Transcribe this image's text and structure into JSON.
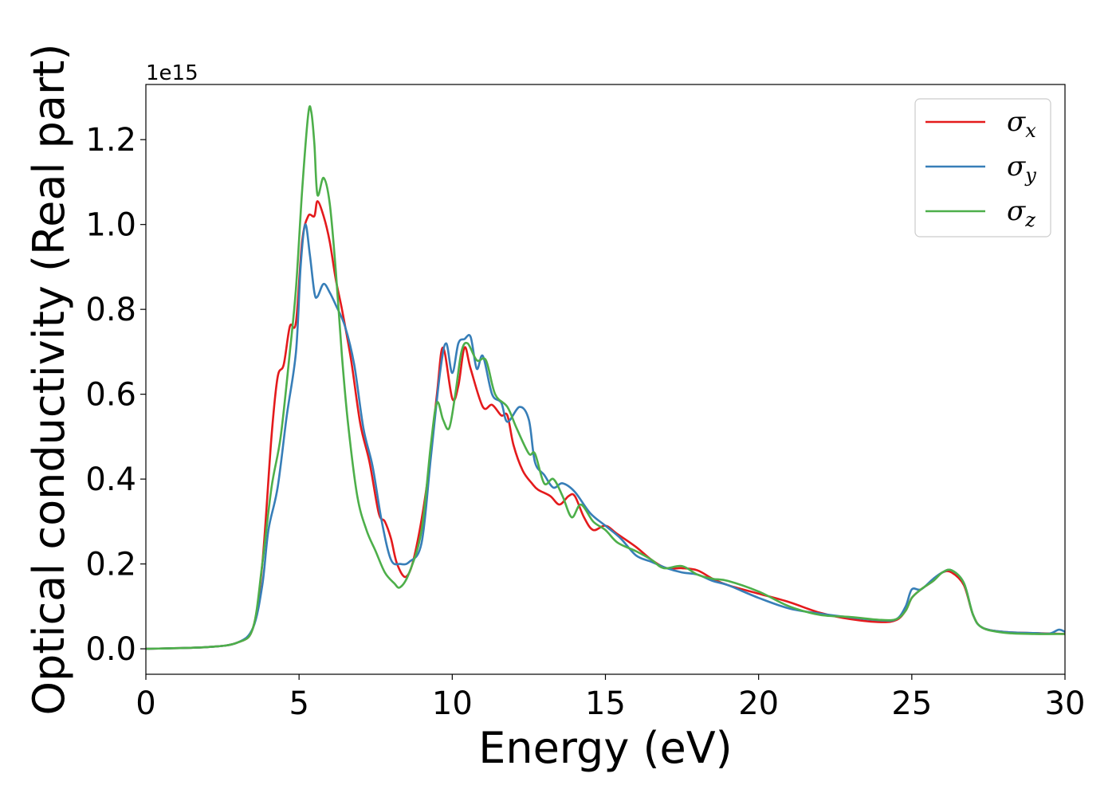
{
  "chart_data": {
    "type": "line",
    "xlabel": "Energy (eV)",
    "ylabel": "Optical conductivity (Real part)",
    "offset_text": "1e15",
    "xlim": [
      0,
      30
    ],
    "ylim": [
      -0.06,
      1.33
    ],
    "xticks": [
      0,
      5,
      10,
      15,
      20,
      25,
      30
    ],
    "xtick_labels": [
      "0",
      "5",
      "10",
      "15",
      "20",
      "25",
      "30"
    ],
    "yticks": [
      0.0,
      0.2,
      0.4,
      0.6,
      0.8,
      1.0,
      1.2
    ],
    "ytick_labels": [
      "0.0",
      "0.2",
      "0.4",
      "0.6",
      "0.8",
      "1.0",
      "1.2"
    ],
    "grid": false,
    "legend": {
      "position": "top-right"
    },
    "series": [
      {
        "name": "σx",
        "base": "σ",
        "sub": "x",
        "color": "#e41a1c",
        "points": [
          [
            0,
            0
          ],
          [
            2,
            0.004
          ],
          [
            3,
            0.015
          ],
          [
            3.5,
            0.05
          ],
          [
            3.8,
            0.2
          ],
          [
            4.1,
            0.5
          ],
          [
            4.3,
            0.64
          ],
          [
            4.5,
            0.67
          ],
          [
            4.7,
            0.76
          ],
          [
            4.9,
            0.77
          ],
          [
            5.1,
            0.96
          ],
          [
            5.3,
            1.02
          ],
          [
            5.5,
            1.02
          ],
          [
            5.6,
            1.055
          ],
          [
            5.8,
            1.02
          ],
          [
            6.0,
            0.96
          ],
          [
            6.2,
            0.87
          ],
          [
            6.4,
            0.8
          ],
          [
            6.7,
            0.68
          ],
          [
            7.0,
            0.53
          ],
          [
            7.3,
            0.44
          ],
          [
            7.6,
            0.32
          ],
          [
            7.8,
            0.3
          ],
          [
            8.0,
            0.26
          ],
          [
            8.2,
            0.2
          ],
          [
            8.5,
            0.17
          ],
          [
            8.8,
            0.23
          ],
          [
            9.2,
            0.4
          ],
          [
            9.5,
            0.6
          ],
          [
            9.7,
            0.71
          ],
          [
            10.0,
            0.59
          ],
          [
            10.2,
            0.62
          ],
          [
            10.4,
            0.71
          ],
          [
            10.6,
            0.66
          ],
          [
            11.0,
            0.57
          ],
          [
            11.3,
            0.575
          ],
          [
            11.6,
            0.55
          ],
          [
            11.8,
            0.55
          ],
          [
            12.0,
            0.48
          ],
          [
            12.3,
            0.42
          ],
          [
            12.6,
            0.39
          ],
          [
            12.8,
            0.375
          ],
          [
            13.2,
            0.36
          ],
          [
            13.5,
            0.34
          ],
          [
            13.8,
            0.36
          ],
          [
            14.0,
            0.36
          ],
          [
            14.3,
            0.31
          ],
          [
            14.6,
            0.28
          ],
          [
            15.0,
            0.29
          ],
          [
            15.4,
            0.27
          ],
          [
            16.0,
            0.24
          ],
          [
            16.5,
            0.21
          ],
          [
            17.0,
            0.19
          ],
          [
            17.5,
            0.19
          ],
          [
            18.0,
            0.185
          ],
          [
            18.5,
            0.165
          ],
          [
            19.0,
            0.15
          ],
          [
            20.0,
            0.13
          ],
          [
            21.0,
            0.11
          ],
          [
            22.0,
            0.085
          ],
          [
            23.0,
            0.07
          ],
          [
            24.0,
            0.063
          ],
          [
            24.5,
            0.068
          ],
          [
            24.8,
            0.09
          ],
          [
            25.0,
            0.12
          ],
          [
            25.3,
            0.14
          ],
          [
            25.7,
            0.16
          ],
          [
            26.0,
            0.18
          ],
          [
            26.3,
            0.18
          ],
          [
            26.7,
            0.15
          ],
          [
            27.0,
            0.08
          ],
          [
            27.3,
            0.05
          ],
          [
            28.0,
            0.04
          ],
          [
            29.0,
            0.037
          ],
          [
            30.0,
            0.035
          ]
        ]
      },
      {
        "name": "σy",
        "base": "σ",
        "sub": "y",
        "color": "#377eb8",
        "points": [
          [
            0,
            0
          ],
          [
            2,
            0.004
          ],
          [
            3,
            0.015
          ],
          [
            3.5,
            0.05
          ],
          [
            3.8,
            0.15
          ],
          [
            4.0,
            0.28
          ],
          [
            4.3,
            0.38
          ],
          [
            4.6,
            0.55
          ],
          [
            4.9,
            0.7
          ],
          [
            5.05,
            0.9
          ],
          [
            5.2,
            1.0
          ],
          [
            5.35,
            0.93
          ],
          [
            5.5,
            0.84
          ],
          [
            5.6,
            0.83
          ],
          [
            5.8,
            0.86
          ],
          [
            6.0,
            0.84
          ],
          [
            6.2,
            0.81
          ],
          [
            6.5,
            0.76
          ],
          [
            6.8,
            0.67
          ],
          [
            7.1,
            0.52
          ],
          [
            7.4,
            0.43
          ],
          [
            7.7,
            0.3
          ],
          [
            8.0,
            0.21
          ],
          [
            8.3,
            0.2
          ],
          [
            8.6,
            0.205
          ],
          [
            9.0,
            0.25
          ],
          [
            9.3,
            0.45
          ],
          [
            9.6,
            0.65
          ],
          [
            9.8,
            0.72
          ],
          [
            10.0,
            0.65
          ],
          [
            10.2,
            0.72
          ],
          [
            10.4,
            0.73
          ],
          [
            10.6,
            0.735
          ],
          [
            10.8,
            0.66
          ],
          [
            11.0,
            0.69
          ],
          [
            11.3,
            0.6
          ],
          [
            11.6,
            0.58
          ],
          [
            11.8,
            0.535
          ],
          [
            12.2,
            0.57
          ],
          [
            12.5,
            0.54
          ],
          [
            12.7,
            0.44
          ],
          [
            13.0,
            0.41
          ],
          [
            13.3,
            0.38
          ],
          [
            13.6,
            0.39
          ],
          [
            14.0,
            0.37
          ],
          [
            14.5,
            0.32
          ],
          [
            15.0,
            0.29
          ],
          [
            15.5,
            0.26
          ],
          [
            16.0,
            0.22
          ],
          [
            16.5,
            0.205
          ],
          [
            17.0,
            0.19
          ],
          [
            17.5,
            0.18
          ],
          [
            18.0,
            0.175
          ],
          [
            18.5,
            0.16
          ],
          [
            19.0,
            0.15
          ],
          [
            20.0,
            0.12
          ],
          [
            21.0,
            0.095
          ],
          [
            22.0,
            0.083
          ],
          [
            23.0,
            0.074
          ],
          [
            24.0,
            0.067
          ],
          [
            24.5,
            0.07
          ],
          [
            24.8,
            0.1
          ],
          [
            25.0,
            0.14
          ],
          [
            25.3,
            0.14
          ],
          [
            25.7,
            0.165
          ],
          [
            26.0,
            0.18
          ],
          [
            26.3,
            0.185
          ],
          [
            26.7,
            0.155
          ],
          [
            27.0,
            0.08
          ],
          [
            27.3,
            0.05
          ],
          [
            28.0,
            0.04
          ],
          [
            29.0,
            0.037
          ],
          [
            29.5,
            0.036
          ],
          [
            29.8,
            0.045
          ],
          [
            30.0,
            0.04
          ]
        ]
      },
      {
        "name": "σz",
        "base": "σ",
        "sub": "z",
        "color": "#4daf4a",
        "points": [
          [
            0,
            0
          ],
          [
            2,
            0.004
          ],
          [
            3,
            0.015
          ],
          [
            3.5,
            0.05
          ],
          [
            3.8,
            0.2
          ],
          [
            4.1,
            0.38
          ],
          [
            4.4,
            0.5
          ],
          [
            4.7,
            0.7
          ],
          [
            4.9,
            0.85
          ],
          [
            5.1,
            1.08
          ],
          [
            5.3,
            1.26
          ],
          [
            5.4,
            1.265
          ],
          [
            5.5,
            1.19
          ],
          [
            5.6,
            1.07
          ],
          [
            5.8,
            1.11
          ],
          [
            6.0,
            1.05
          ],
          [
            6.2,
            0.89
          ],
          [
            6.4,
            0.69
          ],
          [
            6.6,
            0.53
          ],
          [
            6.9,
            0.36
          ],
          [
            7.2,
            0.28
          ],
          [
            7.5,
            0.23
          ],
          [
            7.8,
            0.18
          ],
          [
            8.1,
            0.155
          ],
          [
            8.3,
            0.145
          ],
          [
            8.6,
            0.18
          ],
          [
            9.0,
            0.28
          ],
          [
            9.3,
            0.48
          ],
          [
            9.5,
            0.58
          ],
          [
            9.7,
            0.54
          ],
          [
            9.9,
            0.52
          ],
          [
            10.1,
            0.6
          ],
          [
            10.3,
            0.7
          ],
          [
            10.5,
            0.72
          ],
          [
            10.8,
            0.68
          ],
          [
            11.1,
            0.68
          ],
          [
            11.4,
            0.6
          ],
          [
            11.8,
            0.57
          ],
          [
            12.1,
            0.52
          ],
          [
            12.5,
            0.46
          ],
          [
            12.7,
            0.46
          ],
          [
            13.0,
            0.39
          ],
          [
            13.3,
            0.4
          ],
          [
            13.6,
            0.36
          ],
          [
            13.9,
            0.31
          ],
          [
            14.2,
            0.34
          ],
          [
            14.6,
            0.3
          ],
          [
            15.0,
            0.28
          ],
          [
            15.4,
            0.25
          ],
          [
            16.0,
            0.23
          ],
          [
            16.5,
            0.21
          ],
          [
            16.9,
            0.19
          ],
          [
            17.5,
            0.195
          ],
          [
            18.0,
            0.175
          ],
          [
            18.5,
            0.165
          ],
          [
            19.0,
            0.16
          ],
          [
            20.0,
            0.135
          ],
          [
            21.0,
            0.1
          ],
          [
            22.0,
            0.08
          ],
          [
            23.0,
            0.075
          ],
          [
            24.0,
            0.068
          ],
          [
            24.5,
            0.07
          ],
          [
            24.8,
            0.09
          ],
          [
            25.0,
            0.12
          ],
          [
            25.3,
            0.14
          ],
          [
            25.7,
            0.16
          ],
          [
            26.0,
            0.18
          ],
          [
            26.3,
            0.185
          ],
          [
            26.7,
            0.155
          ],
          [
            27.0,
            0.08
          ],
          [
            27.3,
            0.05
          ],
          [
            28.0,
            0.038
          ],
          [
            29.0,
            0.035
          ],
          [
            30.0,
            0.035
          ]
        ]
      }
    ]
  }
}
